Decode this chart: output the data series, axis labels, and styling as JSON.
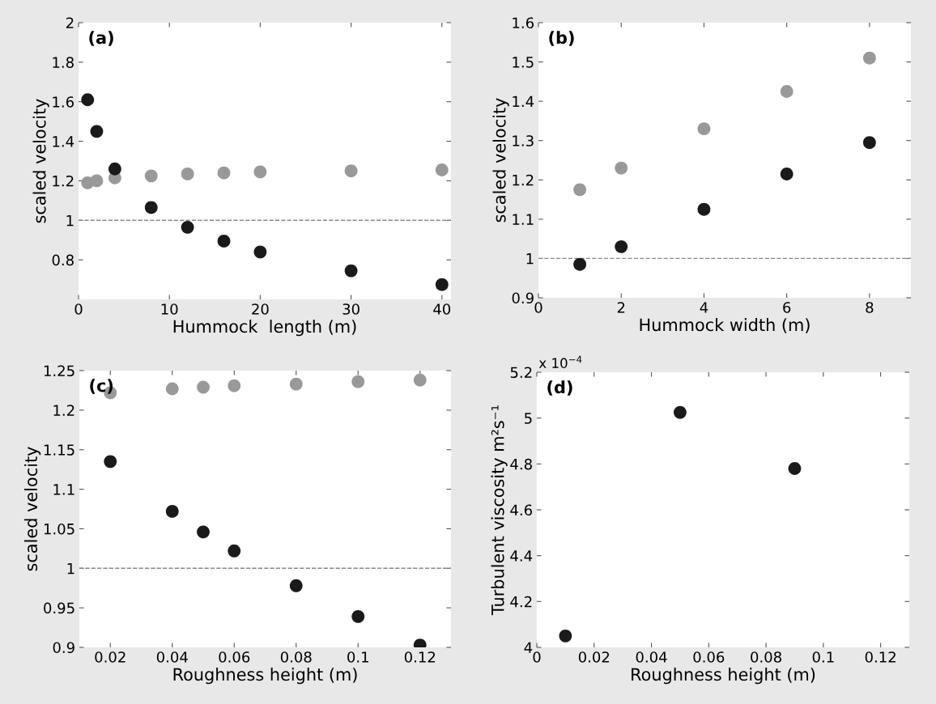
{
  "chart_data": [
    {
      "type": "scatter",
      "xlabel": "Hummock  length (m)",
      "ylabel": "scaled velocity",
      "annotations": [
        "(a)"
      ],
      "marker": "circle",
      "grid": false,
      "xlim": [
        0,
        41
      ],
      "xticks": [
        0,
        10,
        20,
        30,
        40
      ],
      "ylim": [
        0.6,
        2
      ],
      "yticks": [
        0.8,
        1,
        1.2,
        1.4,
        1.6,
        1.8,
        2
      ],
      "ref_lines": [
        {
          "axis": "y",
          "value": 1,
          "color": "#888888",
          "line_style": "dashed"
        }
      ],
      "series": [
        {
          "color": "#999999",
          "x": [
            1,
            2,
            4,
            8,
            12,
            16,
            20,
            30,
            40
          ],
          "values": [
            1.19,
            1.2,
            1.215,
            1.225,
            1.235,
            1.24,
            1.245,
            1.25,
            1.255
          ]
        },
        {
          "color": "#1a1a1a",
          "x": [
            1,
            2,
            4,
            8,
            12,
            16,
            20,
            30,
            40
          ],
          "values": [
            1.61,
            1.45,
            1.26,
            1.065,
            0.965,
            0.895,
            0.84,
            0.745,
            0.675
          ]
        }
      ]
    },
    {
      "type": "scatter",
      "xlabel": "Hummock width (m)",
      "ylabel": "scaled velocity",
      "annotations": [
        "(b)"
      ],
      "marker": "circle",
      "grid": false,
      "xlim": [
        0,
        9
      ],
      "xticks": [
        0,
        2,
        4,
        6,
        8
      ],
      "ylim": [
        0.9,
        1.6
      ],
      "yticks": [
        0.9,
        1,
        1.1,
        1.2,
        1.3,
        1.4,
        1.5,
        1.6
      ],
      "ref_lines": [
        {
          "axis": "y",
          "value": 1,
          "color": "#888888",
          "line_style": "dashed"
        }
      ],
      "series": [
        {
          "color": "#999999",
          "x": [
            1,
            2,
            4,
            6,
            8
          ],
          "values": [
            1.175,
            1.23,
            1.33,
            1.425,
            1.51
          ]
        },
        {
          "color": "#1a1a1a",
          "x": [
            1,
            2,
            4,
            6,
            8
          ],
          "values": [
            0.985,
            1.03,
            1.125,
            1.215,
            1.295
          ]
        }
      ]
    },
    {
      "type": "scatter",
      "xlabel": "Roughness height (m)",
      "ylabel": "scaled velocity",
      "annotations": [
        "(c)"
      ],
      "marker": "circle",
      "grid": false,
      "xlim": [
        0.01,
        0.13
      ],
      "xticks": [
        0.02,
        0.04,
        0.06,
        0.08,
        0.1,
        0.12
      ],
      "ylim": [
        0.9,
        1.25
      ],
      "yticks": [
        0.9,
        0.95,
        1,
        1.05,
        1.1,
        1.15,
        1.2,
        1.25
      ],
      "ref_lines": [
        {
          "axis": "y",
          "value": 1,
          "color": "#888888",
          "line_style": "dashed"
        }
      ],
      "series": [
        {
          "color": "#999999",
          "x": [
            0.02,
            0.04,
            0.05,
            0.06,
            0.08,
            0.1,
            0.12
          ],
          "values": [
            1.222,
            1.227,
            1.229,
            1.231,
            1.233,
            1.236,
            1.238
          ]
        },
        {
          "color": "#1a1a1a",
          "x": [
            0.02,
            0.04,
            0.05,
            0.06,
            0.08,
            0.1,
            0.12
          ],
          "values": [
            1.135,
            1.072,
            1.046,
            1.022,
            0.978,
            0.939,
            0.903
          ]
        }
      ]
    },
    {
      "type": "scatter",
      "xlabel": "Roughness height (m)",
      "ylabel": "Turbulent viscosity m²s⁻¹",
      "annotations": [
        "(d)",
        "x 10$^{−4}$"
      ],
      "marker": "circle",
      "grid": false,
      "xlim": [
        0,
        0.13
      ],
      "xticks": [
        0,
        0.02,
        0.04,
        0.06,
        0.08,
        0.1,
        0.12
      ],
      "ylim": [
        4,
        5.2
      ],
      "yticks": [
        4,
        4.2,
        4.4,
        4.6,
        4.8,
        5,
        5.2
      ],
      "series": [
        {
          "color": "#1a1a1a",
          "x": [
            0.01,
            0.05,
            0.09
          ],
          "values": [
            4.05,
            5.025,
            4.78
          ]
        }
      ]
    }
  ]
}
